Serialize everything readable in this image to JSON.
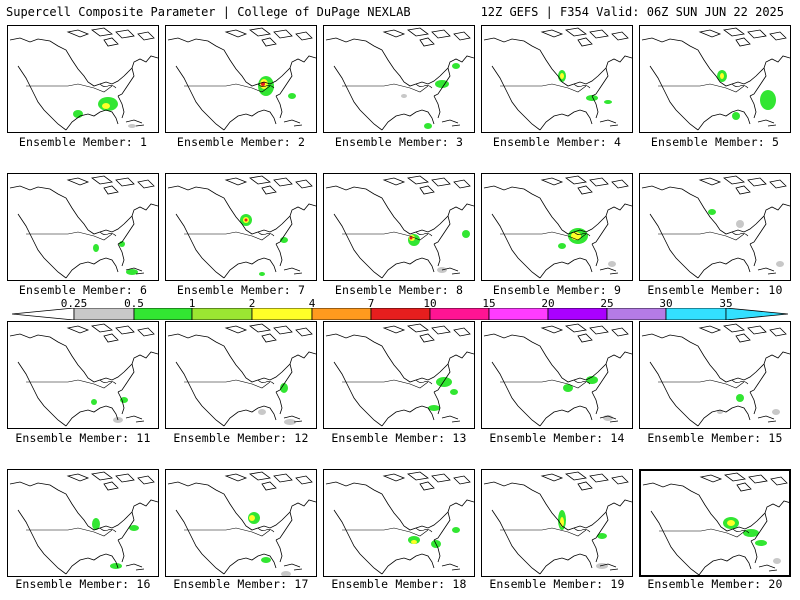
{
  "header": {
    "title_left": "Supercell Composite Parameter | College of DuPage NEXLAB",
    "title_right": "12Z GEFS | F354 Valid: 06Z SUN JUN 22 2025"
  },
  "member_label_prefix": "Ensemble Member: ",
  "members": [
    "1",
    "2",
    "3",
    "4",
    "5",
    "6",
    "7",
    "8",
    "9",
    "10",
    "11",
    "12",
    "13",
    "14",
    "15",
    "16",
    "17",
    "18",
    "19",
    "20"
  ],
  "colorbar": {
    "ticks": [
      "0.25",
      "0.5",
      "1",
      "2",
      "4",
      "7",
      "10",
      "15",
      "20",
      "25",
      "30",
      "35"
    ],
    "colors": [
      "#ffffff",
      "#c8c8c8",
      "#32e632",
      "#9be632",
      "#ffff28",
      "#ff9a1e",
      "#e61e1e",
      "#ff1493",
      "#ff3cff",
      "#aa00ff",
      "#b57be6",
      "#33e0ff"
    ]
  }
}
